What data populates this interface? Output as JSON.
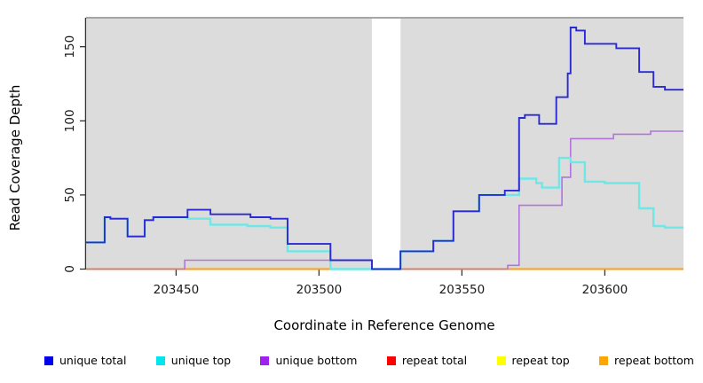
{
  "figure": {
    "xlabel": "Coordinate in Reference Genome",
    "ylabel": "Read Coverage Depth"
  },
  "xaxis": {
    "ticks": [
      "203450",
      "203500",
      "203550",
      "203600"
    ]
  },
  "yaxis": {
    "ticks": [
      "0",
      "50",
      "100",
      "150"
    ]
  },
  "legend": {
    "items": [
      {
        "label": "unique total",
        "color": "#0000EE"
      },
      {
        "label": "unique top",
        "color": "#00E5EE"
      },
      {
        "label": "unique bottom",
        "color": "#A020F0"
      },
      {
        "label": "repeat total",
        "color": "#FF0000"
      },
      {
        "label": "repeat top",
        "color": "#FFFF00"
      },
      {
        "label": "repeat bottom",
        "color": "#FFA500"
      }
    ]
  },
  "chart_data": {
    "type": "line",
    "step": true,
    "title": "",
    "xlabel": "Coordinate in Reference Genome",
    "ylabel": "Read Coverage Depth",
    "xlim": [
      203418.5,
      203627.5
    ],
    "ylim": [
      0,
      169
    ],
    "x_ticks": [
      203450,
      203500,
      203550,
      203600
    ],
    "y_ticks": [
      0,
      50,
      100,
      150
    ],
    "grid": false,
    "plot_background": "#DCDCDC",
    "masked_region": {
      "x0": 203518.5,
      "x1": 203528.5,
      "color": "#FFFFFF"
    },
    "legend_position": "bottom",
    "series": [
      {
        "name": "repeat top",
        "color": "#F2F20C",
        "width": 1.2,
        "points": [
          [
            203418.5,
            0
          ]
        ]
      },
      {
        "name": "repeat total",
        "color": "#E23A3A",
        "width": 1.2,
        "points": [
          [
            203418.5,
            0
          ]
        ]
      },
      {
        "name": "repeat bottom",
        "color": "#FF9D0A",
        "width": 2,
        "points": [
          [
            203418.5,
            0
          ]
        ]
      },
      {
        "name": "unique bottom",
        "color": "#B273DC",
        "width": 1.6,
        "points": [
          [
            203418.5,
            0
          ],
          [
            203453,
            6
          ],
          [
            203518.5,
            0
          ],
          [
            203566,
            2.5
          ],
          [
            203570,
            43
          ],
          [
            203585,
            62
          ],
          [
            203588,
            88
          ],
          [
            203603,
            91
          ],
          [
            203616,
            93
          ]
        ]
      },
      {
        "name": "unique top",
        "color": "#6FE7E7",
        "width": 2.4,
        "points": [
          [
            203418.5,
            18
          ],
          [
            203425,
            35
          ],
          [
            203427,
            34
          ],
          [
            203433,
            22
          ],
          [
            203439,
            33
          ],
          [
            203442,
            35
          ],
          [
            203454,
            34
          ],
          [
            203462,
            30
          ],
          [
            203475,
            29
          ],
          [
            203483,
            28
          ],
          [
            203489,
            12
          ],
          [
            203504,
            0
          ],
          [
            203528.5,
            12
          ],
          [
            203540,
            19
          ],
          [
            203547,
            39
          ],
          [
            203556,
            50
          ],
          [
            203570,
            61
          ],
          [
            203576,
            58
          ],
          [
            203578,
            55
          ],
          [
            203584,
            75
          ],
          [
            203588,
            72
          ],
          [
            203593,
            59
          ],
          [
            203600,
            58
          ],
          [
            203612,
            41
          ],
          [
            203617,
            29
          ],
          [
            203621,
            28
          ]
        ]
      },
      {
        "name": "unique total",
        "color": "#2A2AD4",
        "width": 1.9,
        "points": [
          [
            203418.5,
            18
          ],
          [
            203425,
            35
          ],
          [
            203427,
            34
          ],
          [
            203433,
            22
          ],
          [
            203439,
            33
          ],
          [
            203442,
            35
          ],
          [
            203454,
            40
          ],
          [
            203462,
            37
          ],
          [
            203476,
            35
          ],
          [
            203483,
            34
          ],
          [
            203489,
            17
          ],
          [
            203504,
            6
          ],
          [
            203518.5,
            0
          ],
          [
            203528.5,
            12
          ],
          [
            203540,
            19
          ],
          [
            203547,
            39
          ],
          [
            203556,
            50
          ],
          [
            203565,
            53
          ],
          [
            203570,
            102
          ],
          [
            203572,
            104
          ],
          [
            203577,
            98
          ],
          [
            203583,
            116
          ],
          [
            203587,
            132
          ],
          [
            203588,
            163
          ],
          [
            203590,
            161
          ],
          [
            203593,
            152
          ],
          [
            203604,
            149
          ],
          [
            203612,
            133
          ],
          [
            203617,
            123
          ],
          [
            203621,
            121
          ]
        ]
      }
    ]
  }
}
